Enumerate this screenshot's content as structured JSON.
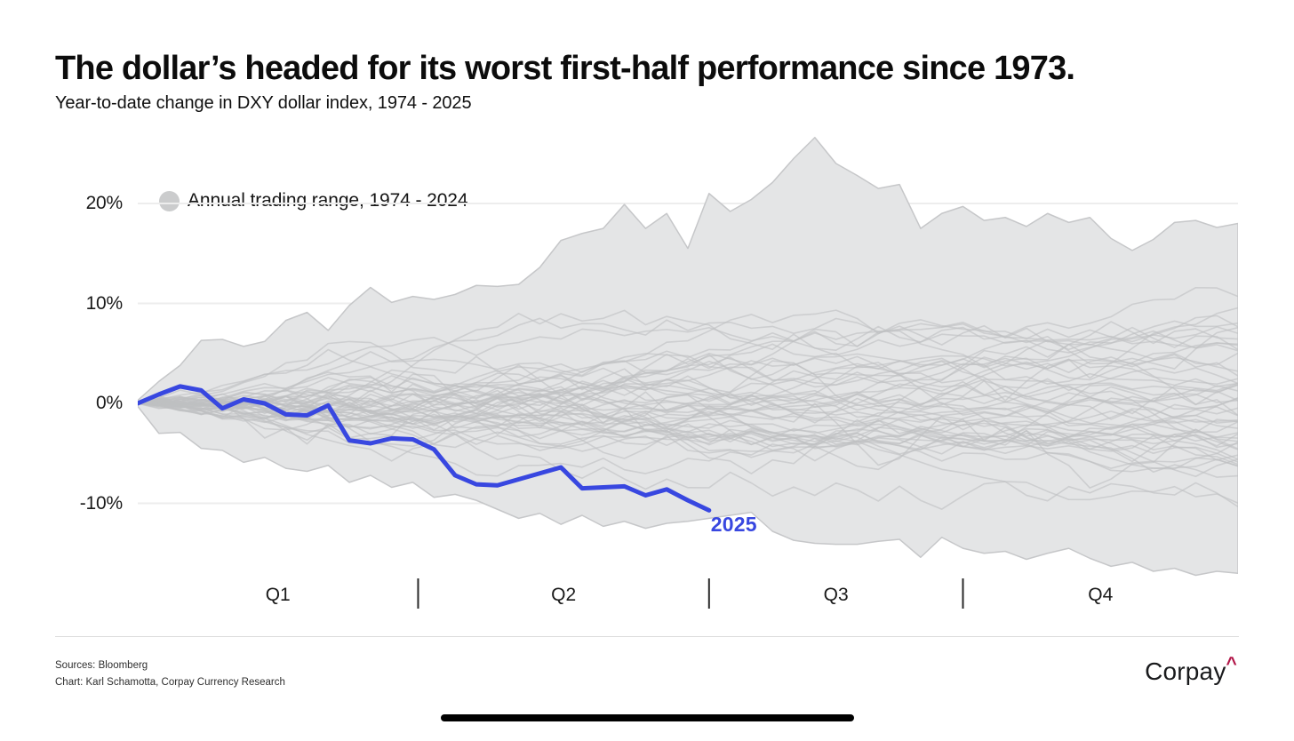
{
  "title": "The dollar’s headed for its worst first-half performance since 1973.",
  "subtitle": "Year-to-date change in DXY dollar index, 1974 - 2025",
  "legend": {
    "label": "Annual trading range, 1974 - 2024",
    "swatch_color": "#cbcccd"
  },
  "footer": {
    "sources_line1": "Sources: Bloomberg",
    "sources_line2": "Chart: Karl Schamotta, Corpay Currency Research",
    "logo_text": "Corpay",
    "logo_caret": "^",
    "logo_caret_color": "#b21648"
  },
  "colors": {
    "line_2025": "#3847e0",
    "range_fill": "#e4e5e6",
    "range_edge": "#c6c7c9",
    "spaghetti": "#bfc0c2",
    "gridline": "#ededed",
    "tick": "#2a2a2a"
  },
  "chart_data": {
    "type": "line",
    "title": "Year-to-date change in DXY dollar index, 1974 - 2025",
    "x_unit": "week_of_year",
    "x_range": [
      0,
      52
    ],
    "ylim": [
      -18,
      28
    ],
    "grid": "horizontal-only",
    "legend_position": "top-left",
    "y_ticks": [
      {
        "label": "20%",
        "value": 20
      },
      {
        "label": "10%",
        "value": 10
      },
      {
        "label": "0%",
        "value": 0
      },
      {
        "label": "-10%",
        "value": -10
      }
    ],
    "quarter_labels": [
      "Q1",
      "Q2",
      "Q3",
      "Q4"
    ],
    "quarter_boundaries_weeks": [
      13.25,
      27,
      39
    ],
    "series": [
      {
        "name": "2025",
        "label": "2025",
        "color": "#3847e0",
        "start_week": 0,
        "values_pct": [
          0.0,
          0.9,
          1.7,
          1.3,
          -0.5,
          0.4,
          0.0,
          -1.1,
          -1.2,
          -0.2,
          -3.7,
          -4.0,
          -3.5,
          -3.6,
          -4.6,
          -7.2,
          -8.1,
          -8.2,
          -7.6,
          -7.0,
          -6.4,
          -8.5,
          -8.4,
          -8.3,
          -9.2,
          -8.6,
          -9.7,
          -10.7
        ]
      }
    ],
    "envelope": {
      "name": "Annual trading range, 1974 - 2024",
      "upper_pct": [
        0.3,
        2.2,
        3.8,
        6.3,
        6.4,
        5.7,
        6.2,
        8.3,
        9.1,
        7.3,
        9.8,
        11.6,
        10.1,
        10.7,
        10.4,
        10.9,
        11.8,
        11.7,
        11.9,
        13.6,
        16.3,
        17.0,
        17.5,
        19.9,
        17.5,
        19.0,
        15.5,
        21.0,
        19.2,
        20.4,
        22.1,
        24.5,
        26.6,
        24.0,
        22.8,
        21.5,
        21.9,
        17.5,
        19.0,
        19.7,
        18.3,
        18.6,
        17.7,
        19.0,
        18.1,
        18.6,
        16.5,
        15.3,
        16.4,
        18.1,
        18.3,
        17.6,
        18.0
      ],
      "lower_pct": [
        -0.3,
        -3.0,
        -2.9,
        -4.5,
        -4.7,
        -5.9,
        -5.4,
        -6.5,
        -6.8,
        -6.2,
        -7.9,
        -7.2,
        -8.4,
        -7.9,
        -9.4,
        -9.1,
        -9.7,
        -10.6,
        -11.5,
        -11.0,
        -12.1,
        -11.2,
        -12.3,
        -11.8,
        -12.5,
        -12.0,
        -11.8,
        -11.5,
        -11.2,
        -10.9,
        -12.8,
        -13.7,
        -14.0,
        -14.1,
        -14.1,
        -13.8,
        -13.6,
        -15.4,
        -13.4,
        -14.5,
        -15.0,
        -14.8,
        -15.6,
        -15.0,
        -14.5,
        -15.5,
        -16.3,
        -15.9,
        -16.8,
        -16.5,
        -17.2,
        -16.8,
        -17.0
      ]
    },
    "background_lines": {
      "count": 51,
      "seed": 2025
    }
  }
}
